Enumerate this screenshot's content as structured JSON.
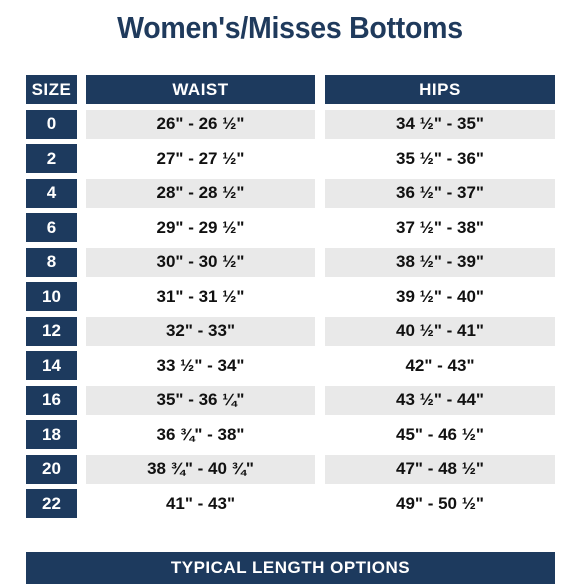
{
  "title": "Women's/Misses Bottoms",
  "headers": {
    "size": "SIZE",
    "waist": "WAIST",
    "hips": "HIPS"
  },
  "rows": [
    {
      "size": "0",
      "waist": "26\" - 26 ½\"",
      "hips": "34 ½\" - 35\""
    },
    {
      "size": "2",
      "waist": "27\" - 27 ½\"",
      "hips": "35 ½\" - 36\""
    },
    {
      "size": "4",
      "waist": "28\" - 28 ½\"",
      "hips": "36 ½\" - 37\""
    },
    {
      "size": "6",
      "waist": "29\" - 29 ½\"",
      "hips": "37 ½\" - 38\""
    },
    {
      "size": "8",
      "waist": "30\" - 30 ½\"",
      "hips": "38 ½\" - 39\""
    },
    {
      "size": "10",
      "waist": "31\" - 31 ½\"",
      "hips": "39 ½\" - 40\""
    },
    {
      "size": "12",
      "waist": "32\" - 33\"",
      "hips": "40 ½\" - 41\""
    },
    {
      "size": "14",
      "waist": "33 ½\" - 34\"",
      "hips": "42\" - 43\""
    },
    {
      "size": "16",
      "waist": "35\" - 36 ¼\"",
      "hips": "43 ½\" - 44\""
    },
    {
      "size": "18",
      "waist": "36 ¾\" - 38\"",
      "hips": "45\" - 46 ½\""
    },
    {
      "size": "20",
      "waist": "38 ¾\" - 40 ¾\"",
      "hips": "47\" - 48 ½\""
    },
    {
      "size": "22",
      "waist": "41\" - 43\"",
      "hips": "49\" - 50 ½\""
    }
  ],
  "footer": "TYPICAL LENGTH OPTIONS",
  "colors": {
    "navy": "#1d3a5e",
    "title": "#1f3a5c",
    "stripe": "#e9e9e9"
  }
}
